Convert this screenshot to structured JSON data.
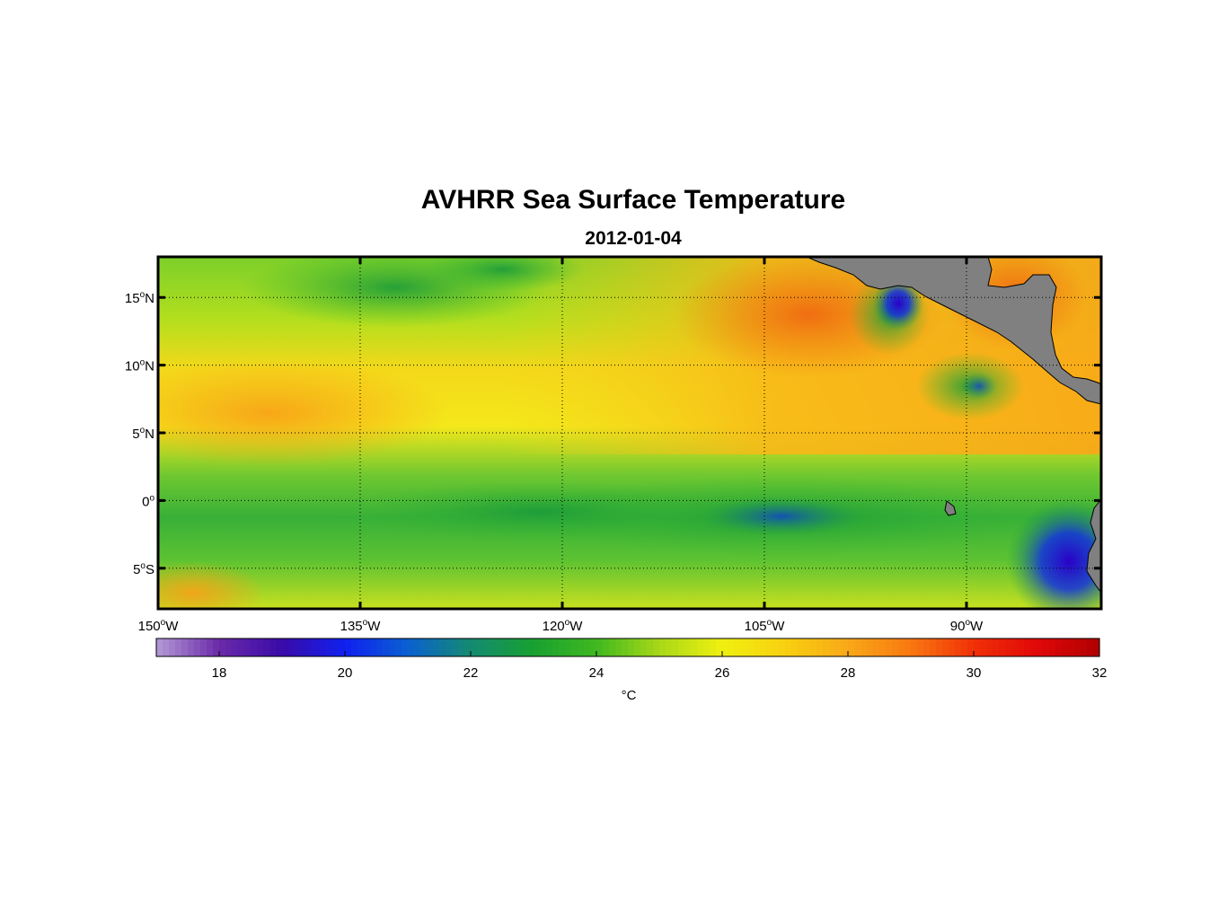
{
  "title": "AVHRR Sea Surface Temperature",
  "subtitle": "2012-01-04",
  "map": {
    "lon_range": [
      -150,
      -80
    ],
    "lat_range": [
      -8,
      18
    ],
    "lat_ticks": [
      {
        "deg": "15",
        "hemi": "N",
        "value": 15
      },
      {
        "deg": "10",
        "hemi": "N",
        "value": 10
      },
      {
        "deg": "5",
        "hemi": "N",
        "value": 5
      },
      {
        "deg": "0",
        "hemi": "",
        "value": 0
      },
      {
        "deg": "5",
        "hemi": "S",
        "value": -5
      }
    ],
    "lon_ticks": [
      {
        "deg": "150",
        "hemi": "W",
        "value": -150
      },
      {
        "deg": "135",
        "hemi": "W",
        "value": -135
      },
      {
        "deg": "120",
        "hemi": "W",
        "value": -120
      },
      {
        "deg": "105",
        "hemi": "W",
        "value": -105
      },
      {
        "deg": "90",
        "hemi": "W",
        "value": -90
      }
    ],
    "degree_symbol": "o",
    "land_color": "#808080",
    "grid": "dotted"
  },
  "colorbar": {
    "range": [
      17,
      32
    ],
    "ticks": [
      "18",
      "20",
      "22",
      "24",
      "26",
      "28",
      "30",
      "32"
    ],
    "unit": "°C",
    "colormap": "purple-blue-green-yellow-orange-red"
  }
}
